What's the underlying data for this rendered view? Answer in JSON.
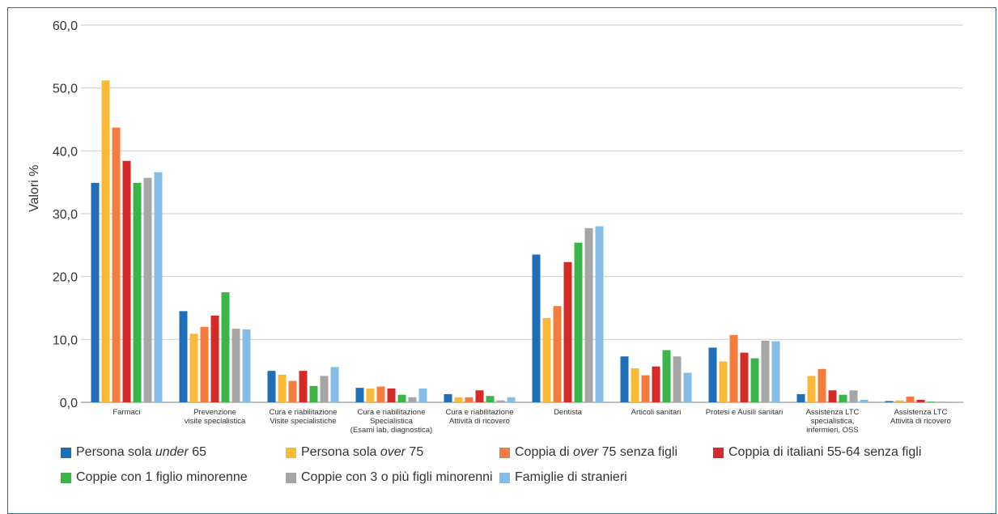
{
  "chart_data": {
    "type": "bar",
    "ylabel": "Valori %",
    "ylim": [
      0,
      60
    ],
    "yticks": [
      "0,0",
      "10,0",
      "20,0",
      "30,0",
      "40,0",
      "50,0",
      "60,0"
    ],
    "grid": true,
    "legend_position": "bottom",
    "categories": [
      {
        "lines": [
          "Farmaci"
        ]
      },
      {
        "lines": [
          "Prevenzione",
          "visite specialistica"
        ]
      },
      {
        "lines": [
          "Cura e riabilitazione",
          "Visite specialistiche"
        ]
      },
      {
        "lines": [
          "Cura e riabilitazione",
          "Specialistica",
          "(Esami lab, diagnostica)"
        ]
      },
      {
        "lines": [
          "Cura e riabilitazione",
          "Attività di ricovero"
        ]
      },
      {
        "lines": [
          "Dentista"
        ]
      },
      {
        "lines": [
          "Articoli sanitari"
        ]
      },
      {
        "lines": [
          "Protesi e Ausili sanitari"
        ]
      },
      {
        "lines": [
          "Assistenza LTC",
          "specialistica,",
          "infermieri, OSS"
        ]
      },
      {
        "lines": [
          "Assistenza LTC",
          "Attività di ricovero"
        ]
      }
    ],
    "series": [
      {
        "name_parts": [
          "Persona sola ",
          "under",
          " 65"
        ],
        "color": "#1f6fb8",
        "values": [
          34.9,
          14.5,
          5.0,
          2.3,
          1.3,
          23.5,
          7.3,
          8.7,
          1.3,
          0.2
        ]
      },
      {
        "name_parts": [
          "Persona sola ",
          "over",
          " 75"
        ],
        "color": "#fbb93a",
        "values": [
          51.2,
          10.9,
          4.4,
          2.2,
          0.8,
          13.4,
          5.4,
          6.5,
          4.2,
          0.3
        ]
      },
      {
        "name_parts": [
          "Coppia di ",
          "over",
          " 75 senza figli"
        ],
        "color": "#f47c3c",
        "values": [
          43.7,
          12.0,
          3.4,
          2.5,
          0.8,
          15.3,
          4.3,
          10.7,
          5.3,
          0.9
        ]
      },
      {
        "name_parts": [
          "Coppia di italiani 55-64 senza figli",
          "",
          ""
        ],
        "color": "#d42a28",
        "values": [
          38.4,
          13.8,
          5.0,
          2.2,
          1.9,
          22.3,
          5.7,
          7.9,
          1.9,
          0.4
        ]
      },
      {
        "name_parts": [
          "Coppie con 1 figlio minorenne",
          "",
          ""
        ],
        "color": "#3bb54a",
        "values": [
          34.9,
          17.5,
          2.6,
          1.2,
          1.0,
          25.4,
          8.3,
          7.0,
          1.2,
          0.1
        ]
      },
      {
        "name_parts": [
          "Coppie con 3 o più figli minorenni",
          "",
          ""
        ],
        "color": "#a6a6a6",
        "values": [
          35.7,
          11.7,
          4.2,
          0.8,
          0.3,
          27.7,
          7.3,
          9.8,
          1.9,
          0.1
        ]
      },
      {
        "name_parts": [
          "Famiglie di stranieri",
          "",
          ""
        ],
        "color": "#85bde6",
        "values": [
          36.6,
          11.6,
          5.6,
          2.2,
          0.8,
          28.0,
          4.7,
          9.7,
          0.4,
          0.0
        ]
      }
    ]
  }
}
